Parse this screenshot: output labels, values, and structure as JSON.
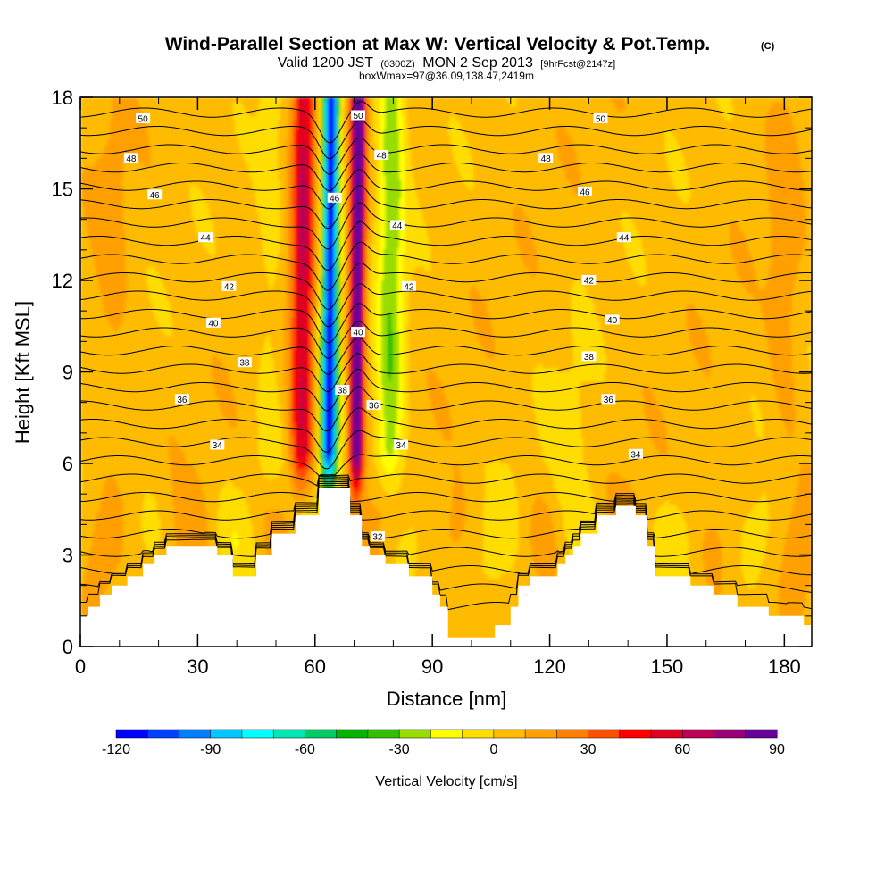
{
  "title": {
    "main": "Wind-Parallel Section at Max W: Vertical Velocity & Pot.Temp.",
    "main_suffix": "(C)",
    "valid_prefix": "Valid 1200 JST",
    "valid_utc": "(0300Z)",
    "valid_date": "MON 2 Sep 2013",
    "forecast": "[9hrFcst@2147z]",
    "box_info": "boxWmax=97@36.09,138.47,2419m"
  },
  "chart_data": {
    "type": "heatmap",
    "xlabel": "Distance [nm]",
    "ylabel": "Height [Kft MSL]",
    "xlim": [
      0,
      187
    ],
    "ylim": [
      0,
      18
    ],
    "x_ticks": [
      "0",
      "30",
      "60",
      "90",
      "120",
      "150",
      "180"
    ],
    "x_tick_values": [
      0,
      30,
      60,
      90,
      120,
      150,
      180
    ],
    "y_ticks": [
      "0",
      "3",
      "6",
      "9",
      "12",
      "15",
      "18"
    ],
    "y_tick_values": [
      0,
      3,
      6,
      9,
      12,
      15,
      18
    ],
    "colorbar": {
      "title": "Vertical Velocity [cm/s]",
      "min": -120,
      "max": 90,
      "step": 10,
      "labels": [
        "-120",
        "-90",
        "-60",
        "-30",
        "0",
        "30",
        "60",
        "90"
      ],
      "label_values": [
        -120,
        -90,
        -60,
        -30,
        0,
        30,
        60,
        90
      ],
      "colors": [
        "#0000ff",
        "#0040ff",
        "#0080ff",
        "#00c8ff",
        "#00ffff",
        "#00e6b4",
        "#00cc66",
        "#00b400",
        "#33c000",
        "#99dd00",
        "#ffff00",
        "#ffdd00",
        "#ffbb00",
        "#ffa000",
        "#ff8000",
        "#ff5000",
        "#ff0000",
        "#dd0022",
        "#bb0055",
        "#990077",
        "#660099"
      ]
    },
    "terrain": [
      [
        0,
        1
      ],
      [
        2,
        1
      ],
      [
        2,
        1.3
      ],
      [
        5,
        1.3
      ],
      [
        5,
        1.7
      ],
      [
        8,
        1.7
      ],
      [
        8,
        2
      ],
      [
        12,
        2
      ],
      [
        12,
        2.3
      ],
      [
        16,
        2.3
      ],
      [
        16,
        2.7
      ],
      [
        19,
        2.7
      ],
      [
        19,
        3
      ],
      [
        22,
        3
      ],
      [
        22,
        3.3
      ],
      [
        28,
        3.3
      ],
      [
        28,
        3.3
      ],
      [
        35,
        3.3
      ],
      [
        35,
        3
      ],
      [
        39,
        3
      ],
      [
        39,
        2.3
      ],
      [
        45,
        2.3
      ],
      [
        45,
        3
      ],
      [
        49,
        3
      ],
      [
        49,
        3.7
      ],
      [
        55,
        3.7
      ],
      [
        55,
        4.3
      ],
      [
        61,
        4.3
      ],
      [
        61,
        5.2
      ],
      [
        69,
        5.2
      ],
      [
        69,
        4.3
      ],
      [
        72,
        4.3
      ],
      [
        72,
        3.3
      ],
      [
        74,
        3.3
      ],
      [
        74,
        3
      ],
      [
        78,
        3
      ],
      [
        78,
        2.7
      ],
      [
        84,
        2.7
      ],
      [
        84,
        2.3
      ],
      [
        90,
        2.3
      ],
      [
        90,
        1.7
      ],
      [
        92,
        1.7
      ],
      [
        92,
        1.3
      ],
      [
        94,
        1.3
      ],
      [
        94,
        0.3
      ],
      [
        106,
        0.3
      ],
      [
        106,
        0.7
      ],
      [
        110,
        0.7
      ],
      [
        110,
        1.3
      ],
      [
        112,
        1.3
      ],
      [
        112,
        2
      ],
      [
        115,
        2
      ],
      [
        115,
        2.3
      ],
      [
        122,
        2.3
      ],
      [
        122,
        2.7
      ],
      [
        124,
        2.7
      ],
      [
        124,
        3
      ],
      [
        126,
        3
      ],
      [
        126,
        3.3
      ],
      [
        128,
        3.3
      ],
      [
        128,
        3.7
      ],
      [
        132,
        3.7
      ],
      [
        132,
        4.3
      ],
      [
        137,
        4.3
      ],
      [
        137,
        4.6
      ],
      [
        142,
        4.6
      ],
      [
        142,
        4.3
      ],
      [
        145,
        4.3
      ],
      [
        145,
        3.3
      ],
      [
        147,
        3.3
      ],
      [
        147,
        2.3
      ],
      [
        156,
        2.3
      ],
      [
        156,
        2
      ],
      [
        162,
        2
      ],
      [
        162,
        1.7
      ],
      [
        168,
        1.7
      ],
      [
        168,
        1.3
      ],
      [
        176,
        1.3
      ],
      [
        176,
        1
      ],
      [
        180,
        1
      ],
      [
        180,
        1
      ],
      [
        185,
        1
      ],
      [
        185,
        0.7
      ],
      [
        187,
        0.7
      ]
    ],
    "updraft": {
      "center_x": 64,
      "base_height": 5.2,
      "tilt_nm_per_kft": 0.05
    },
    "theta_contours": [
      {
        "value": 32,
        "label": "32",
        "base_height": 3.4,
        "label_x": 76,
        "label_y": 3.6
      },
      {
        "value": 34,
        "label": "34",
        "base_height": 6.6,
        "label_positions": [
          [
            35,
            6.6
          ],
          [
            82,
            6.6
          ],
          [
            142,
            6.3
          ]
        ]
      },
      {
        "value": 36,
        "label": "36",
        "base_height": 8.1,
        "label_positions": [
          [
            26,
            8.1
          ],
          [
            75,
            7.9
          ],
          [
            135,
            8.1
          ]
        ]
      },
      {
        "value": 38,
        "label": "38",
        "base_height": 9.3,
        "label_positions": [
          [
            42,
            9.3
          ],
          [
            67,
            8.4
          ],
          [
            130,
            9.5
          ]
        ]
      },
      {
        "value": 40,
        "label": "40",
        "base_height": 10.6,
        "label_positions": [
          [
            34,
            10.6
          ],
          [
            71,
            10.3
          ],
          [
            136,
            10.7
          ]
        ]
      },
      {
        "value": 42,
        "label": "42",
        "base_height": 11.8,
        "label_positions": [
          [
            38,
            11.8
          ],
          [
            84,
            11.8
          ],
          [
            130,
            12
          ]
        ]
      },
      {
        "value": 44,
        "label": "44",
        "base_height": 13.2,
        "label_positions": [
          [
            32,
            13.4
          ],
          [
            81,
            13.8
          ],
          [
            139,
            13.4
          ]
        ]
      },
      {
        "value": 46,
        "label": "46",
        "base_height": 14.8,
        "label_positions": [
          [
            19,
            14.8
          ],
          [
            65,
            14.7
          ],
          [
            129,
            14.9
          ]
        ]
      },
      {
        "value": 48,
        "label": "48",
        "base_height": 16,
        "label_positions": [
          [
            13,
            16
          ],
          [
            77,
            16.1
          ],
          [
            119,
            16
          ]
        ]
      },
      {
        "value": 50,
        "label": "50",
        "base_height": 17.2,
        "label_positions": [
          [
            16,
            17.3
          ],
          [
            71,
            17.4
          ],
          [
            133,
            17.3
          ]
        ]
      }
    ]
  }
}
